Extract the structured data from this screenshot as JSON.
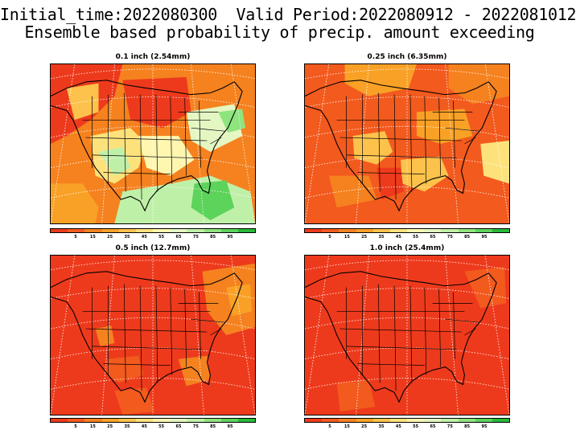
{
  "header": {
    "line1": "Initial_time:2022080300  Valid Period:2022080912 - 2022081012",
    "line2": "Ensemble based probability of precip. amount exceeding"
  },
  "panels": [
    {
      "title": "0.1 inch (2.54mm)",
      "level": "low"
    },
    {
      "title": "0.25 inch (6.35mm)",
      "level": "mid"
    },
    {
      "title": "0.5 inch (12.7mm)",
      "level": "high"
    },
    {
      "title": "1.0 inch (25.4mm)",
      "level": "max"
    }
  ],
  "colorbar": {
    "colors": [
      "#ee3a1c",
      "#f35a1e",
      "#f5821f",
      "#f9a126",
      "#fcc24b",
      "#fde27c",
      "#fff6b0",
      "#e4f7c2",
      "#bff0a8",
      "#8ee47e",
      "#5cd35a",
      "#27b93a"
    ],
    "tick_labels": [
      "5",
      "15",
      "25",
      "35",
      "45",
      "55",
      "65",
      "75",
      "85",
      "95"
    ]
  }
}
